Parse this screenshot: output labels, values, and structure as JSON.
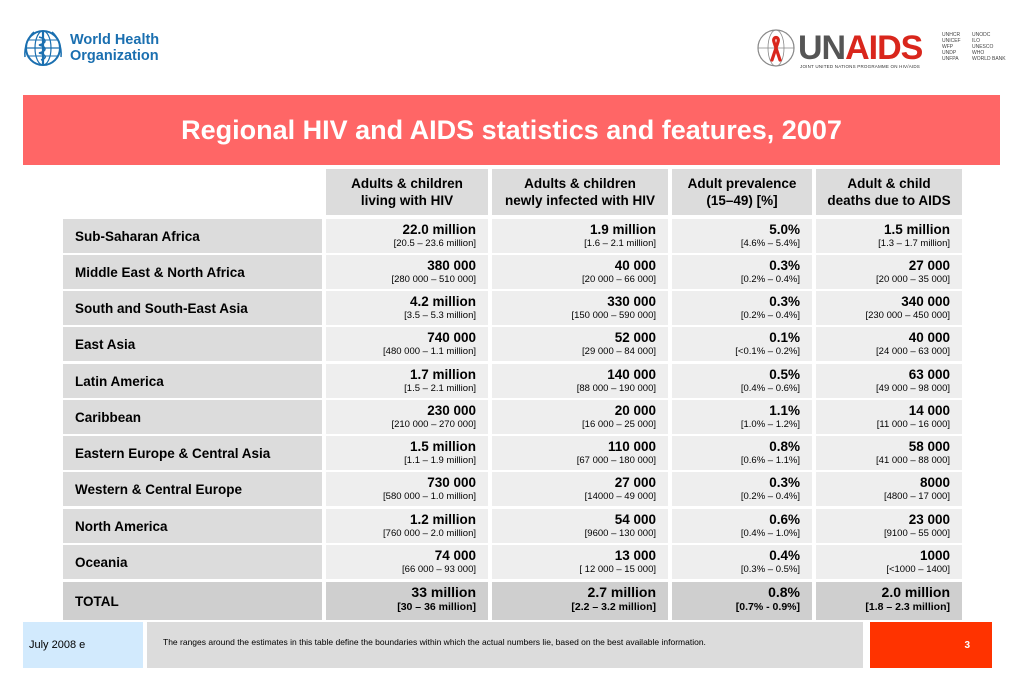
{
  "logos": {
    "who_line1": "World Health",
    "who_line2": "Organization",
    "unaids_un": "UN",
    "unaids_aids": "AIDS",
    "unaids_tagline": "JOINT UNITED NATIONS PROGRAMME ON HIV/AIDS",
    "cosponsors_col1": [
      "UNHCR",
      "UNICEF",
      "WFP",
      "UNDP",
      "UNFPA"
    ],
    "cosponsors_col2": [
      "UNODC",
      "ILO",
      "UNESCO",
      "WHO",
      "WORLD BANK"
    ]
  },
  "title": "Regional HIV and AIDS statistics and features, 2007",
  "columns": [
    {
      "line1": "Adults & children",
      "line2": "living with HIV"
    },
    {
      "line1": "Adults & children",
      "line2": "newly infected with HIV"
    },
    {
      "line1": "Adult prevalence",
      "line2": "(15–49) [%]"
    },
    {
      "line1": "Adult & child",
      "line2": "deaths due to AIDS"
    }
  ],
  "rows": [
    {
      "region": "Sub-Saharan Africa",
      "cells": [
        [
          "22.0 million",
          "[20.5 – 23.6 million]"
        ],
        [
          "1.9 million",
          "[1.6 – 2.1 million]"
        ],
        [
          "5.0%",
          "[4.6% – 5.4%]"
        ],
        [
          "1.5 million",
          "[1.3 – 1.7 million]"
        ]
      ]
    },
    {
      "region": "Middle East & North Africa",
      "cells": [
        [
          "380 000",
          "[280 000 – 510 000]"
        ],
        [
          "40 000",
          "[20 000 – 66 000]"
        ],
        [
          "0.3%",
          "[0.2% – 0.4%]"
        ],
        [
          "27 000",
          "[20 000 – 35 000]"
        ]
      ]
    },
    {
      "region": "South and South-East Asia",
      "cells": [
        [
          "4.2 million",
          "[3.5 – 5.3 million]"
        ],
        [
          "330 000",
          "[150 000 – 590 000]"
        ],
        [
          "0.3%",
          "[0.2% – 0.4%]"
        ],
        [
          "340 000",
          "[230 000 – 450 000]"
        ]
      ]
    },
    {
      "region": "East Asia",
      "cells": [
        [
          "740 000",
          "[480 000 – 1.1 million]"
        ],
        [
          "52 000",
          "[29 000 – 84 000]"
        ],
        [
          "0.1%",
          "[<0.1% – 0.2%]"
        ],
        [
          "40 000",
          "[24 000 – 63 000]"
        ]
      ]
    },
    {
      "region": "Latin America",
      "cells": [
        [
          "1.7 million",
          "[1.5 – 2.1 million]"
        ],
        [
          "140 000",
          "[88 000 – 190 000]"
        ],
        [
          "0.5%",
          "[0.4% – 0.6%]"
        ],
        [
          "63 000",
          "[49 000 – 98 000]"
        ]
      ]
    },
    {
      "region": "Caribbean",
      "cells": [
        [
          "230 000",
          "[210 000 – 270 000]"
        ],
        [
          "20 000",
          "[16 000 – 25 000]"
        ],
        [
          "1.1%",
          "[1.0% – 1.2%]"
        ],
        [
          "14 000",
          "[11 000 – 16 000]"
        ]
      ]
    },
    {
      "region": "Eastern Europe & Central Asia",
      "cells": [
        [
          "1.5 million",
          "[1.1 – 1.9 million]"
        ],
        [
          "110 000",
          "[67 000 – 180 000]"
        ],
        [
          "0.8%",
          "[0.6% – 1.1%]"
        ],
        [
          "58 000",
          "[41 000 – 88 000]"
        ]
      ]
    },
    {
      "region": "Western & Central Europe",
      "cells": [
        [
          "730 000",
          "[580 000 – 1.0 million]"
        ],
        [
          "27 000",
          "[14000 – 49 000]"
        ],
        [
          "0.3%",
          "[0.2% – 0.4%]"
        ],
        [
          "8000",
          "[4800 – 17 000]"
        ]
      ]
    },
    {
      "region": "North America",
      "cells": [
        [
          "1.2 million",
          "[760 000 – 2.0 million]"
        ],
        [
          "54 000",
          "[9600 – 130 000]"
        ],
        [
          "0.6%",
          "[0.4% – 1.0%]"
        ],
        [
          "23 000",
          "[9100 – 55 000]"
        ]
      ]
    },
    {
      "region": "Oceania",
      "cells": [
        [
          "74 000",
          "[66 000 – 93 000]"
        ],
        [
          "13 000",
          "[ 12 000 – 15 000]"
        ],
        [
          "0.4%",
          "[0.3% – 0.5%]"
        ],
        [
          "1000",
          "[<1000 – 1400]"
        ]
      ]
    }
  ],
  "total": {
    "region": "TOTAL",
    "cells": [
      [
        "33 million",
        "[30 – 36 million]"
      ],
      [
        "2.7 million",
        "[2.2 – 3.2 million]"
      ],
      [
        "0.8%",
        "[0.7% - 0.9%]"
      ],
      [
        "2.0 million",
        "[1.8 – 2.3 million]"
      ]
    ]
  },
  "footer": {
    "date": "July 2008  e",
    "note": "The ranges around the estimates in this table define the boundaries within which the actual numbers lie, based on the best available information.",
    "page": "3"
  }
}
